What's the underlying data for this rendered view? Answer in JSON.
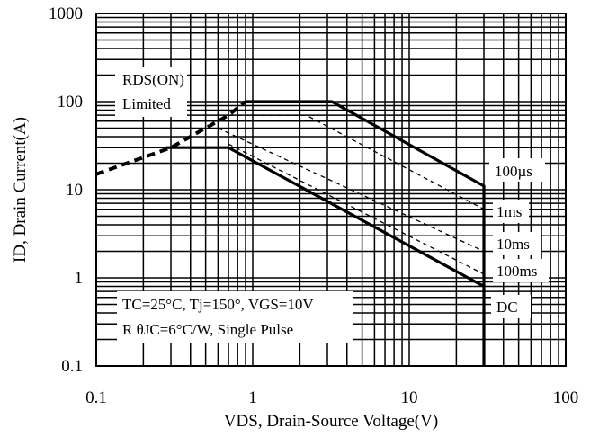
{
  "chart_data": {
    "type": "line",
    "title": "",
    "xlabel": "VDS, Drain-Source Voltage(V)",
    "ylabel": "ID, Drain Current(A)",
    "xscale": "log",
    "yscale": "log",
    "xlim": [
      0.1,
      100
    ],
    "ylim": [
      0.1,
      1000
    ],
    "grid": true,
    "x_ticks": [
      "0.1",
      "1",
      "10",
      "100"
    ],
    "y_ticks": [
      "0.1",
      "1",
      "10",
      "100",
      "1000"
    ],
    "series": [
      {
        "name": "RDS(ON) Limited",
        "style": "dashed-thick",
        "x": [
          0.1,
          0.3,
          0.7,
          0.9
        ],
        "y": [
          15,
          30,
          70,
          100
        ]
      },
      {
        "name": "100µs",
        "style": "solid",
        "x": [
          0.9,
          3.2,
          30,
          30
        ],
        "y": [
          100,
          100,
          11,
          0.1
        ]
      },
      {
        "name": "1ms",
        "style": "dashed",
        "x": [
          0.7,
          2.2,
          30
        ],
        "y": [
          70,
          70,
          6
        ]
      },
      {
        "name": "10ms",
        "style": "dashed",
        "x": [
          0.6,
          30
        ],
        "y": [
          50,
          2
        ]
      },
      {
        "name": "100ms",
        "style": "dashed",
        "x": [
          0.7,
          30
        ],
        "y": [
          33,
          1.1
        ]
      },
      {
        "name": "DC",
        "style": "solid",
        "x": [
          0.28,
          0.7,
          30
        ],
        "y": [
          30,
          30,
          0.8
        ]
      }
    ],
    "annotations": {
      "rds_line1": "RDS(ON)",
      "rds_line2": "Limited",
      "label_100us": "100µs",
      "label_1ms": "1ms",
      "label_10ms": "10ms",
      "label_100ms": "100ms",
      "label_dc": "DC",
      "cond_line1": "TC=25°C, Tj=150°, VGS=10V",
      "cond_line2": "R θJC=6°C/W, Single Pulse"
    }
  }
}
